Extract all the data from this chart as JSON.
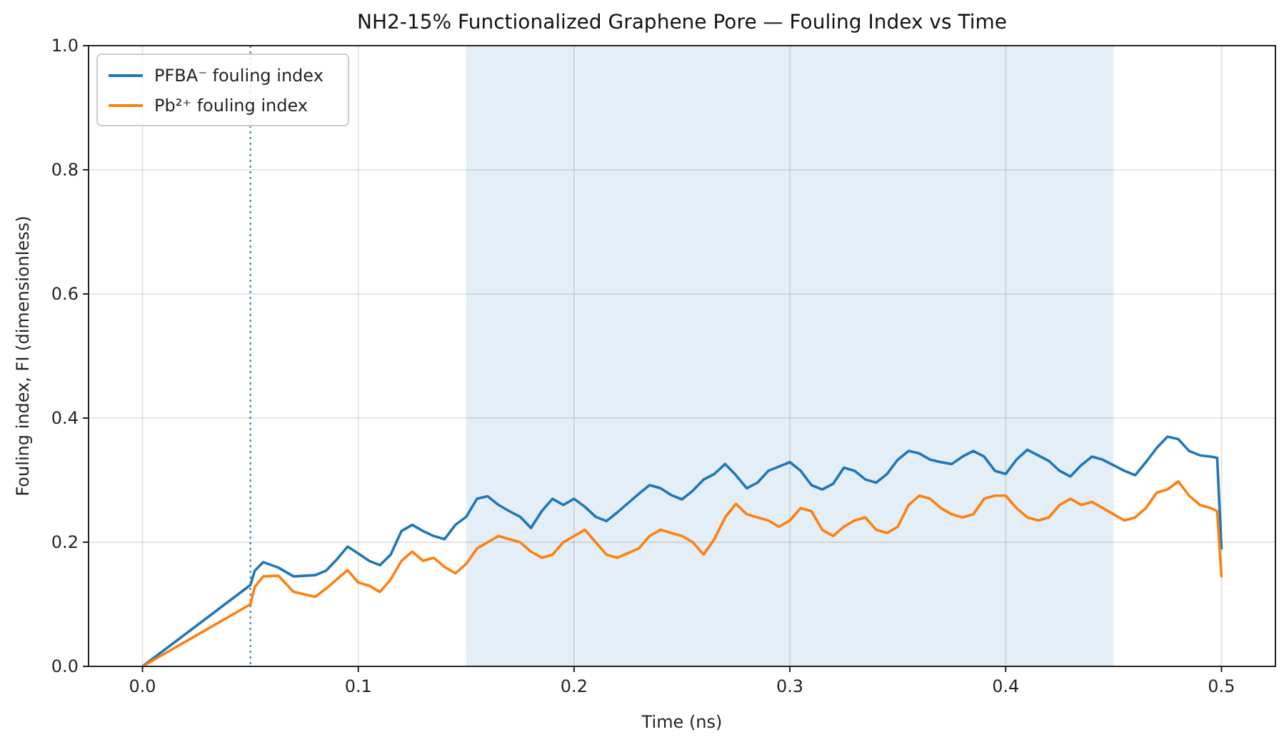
{
  "chart_data": {
    "type": "line",
    "title": "NH2-15% Functionalized Graphene Pore — Fouling Index vs Time",
    "xlabel": "Time (ns)",
    "ylabel": "Fouling index, FI (dimensionless)",
    "x": [
      0,
      0.05,
      0.052,
      0.056,
      0.063,
      0.07,
      0.08,
      0.085,
      0.09,
      0.095,
      0.1,
      0.105,
      0.11,
      0.115,
      0.12,
      0.125,
      0.13,
      0.135,
      0.14,
      0.145,
      0.15,
      0.155,
      0.16,
      0.165,
      0.17,
      0.175,
      0.18,
      0.185,
      0.19,
      0.195,
      0.2,
      0.205,
      0.21,
      0.215,
      0.22,
      0.23,
      0.235,
      0.24,
      0.245,
      0.25,
      0.255,
      0.26,
      0.265,
      0.27,
      0.275,
      0.28,
      0.285,
      0.29,
      0.295,
      0.3,
      0.305,
      0.31,
      0.315,
      0.32,
      0.325,
      0.33,
      0.335,
      0.34,
      0.345,
      0.35,
      0.355,
      0.36,
      0.365,
      0.37,
      0.375,
      0.38,
      0.385,
      0.39,
      0.395,
      0.4,
      0.405,
      0.41,
      0.415,
      0.42,
      0.425,
      0.43,
      0.435,
      0.44,
      0.445,
      0.45,
      0.455,
      0.46,
      0.465,
      0.47,
      0.475,
      0.48,
      0.485,
      0.49,
      0.495,
      0.498,
      0.5
    ],
    "series": [
      {
        "name": "PFBA⁻ fouling index",
        "color": "#1f77b4",
        "values": [
          0,
          0.131,
          0.154,
          0.168,
          0.159,
          0.145,
          0.147,
          0.154,
          0.172,
          0.193,
          0.182,
          0.17,
          0.163,
          0.18,
          0.218,
          0.228,
          0.218,
          0.21,
          0.205,
          0.228,
          0.241,
          0.27,
          0.274,
          0.26,
          0.25,
          0.241,
          0.223,
          0.25,
          0.27,
          0.26,
          0.27,
          0.257,
          0.241,
          0.234,
          0.248,
          0.278,
          0.292,
          0.287,
          0.276,
          0.269,
          0.283,
          0.301,
          0.31,
          0.326,
          0.308,
          0.287,
          0.296,
          0.315,
          0.322,
          0.329,
          0.315,
          0.292,
          0.285,
          0.294,
          0.32,
          0.315,
          0.301,
          0.296,
          0.31,
          0.333,
          0.347,
          0.343,
          0.333,
          0.329,
          0.326,
          0.338,
          0.347,
          0.338,
          0.315,
          0.31,
          0.333,
          0.349,
          0.34,
          0.331,
          0.315,
          0.306,
          0.324,
          0.338,
          0.333,
          0.324,
          0.315,
          0.308,
          0.329,
          0.352,
          0.37,
          0.366,
          0.347,
          0.34,
          0.338,
          0.336,
          0.19
        ]
      },
      {
        "name": "Pb²⁺ fouling index",
        "color": "#ff7f0e",
        "values": [
          0,
          0.1,
          0.128,
          0.145,
          0.146,
          0.12,
          0.112,
          0.125,
          0.14,
          0.155,
          0.135,
          0.13,
          0.12,
          0.14,
          0.17,
          0.185,
          0.17,
          0.175,
          0.16,
          0.15,
          0.165,
          0.19,
          0.2,
          0.21,
          0.205,
          0.2,
          0.185,
          0.175,
          0.18,
          0.2,
          0.21,
          0.22,
          0.2,
          0.18,
          0.175,
          0.19,
          0.21,
          0.22,
          0.215,
          0.21,
          0.2,
          0.18,
          0.205,
          0.24,
          0.262,
          0.245,
          0.24,
          0.235,
          0.225,
          0.235,
          0.255,
          0.25,
          0.22,
          0.21,
          0.225,
          0.235,
          0.24,
          0.22,
          0.215,
          0.225,
          0.26,
          0.275,
          0.27,
          0.255,
          0.245,
          0.24,
          0.245,
          0.27,
          0.275,
          0.275,
          0.255,
          0.24,
          0.235,
          0.24,
          0.26,
          0.27,
          0.26,
          0.265,
          0.255,
          0.245,
          0.235,
          0.24,
          0.255,
          0.28,
          0.285,
          0.298,
          0.275,
          0.26,
          0.255,
          0.25,
          0.145
        ]
      }
    ],
    "xlim": [
      -0.025,
      0.525
    ],
    "ylim": [
      0,
      1
    ],
    "xticks": [
      {
        "value": 0,
        "label": "0.0"
      },
      0.1,
      0.2,
      0.3,
      0.4,
      0.5
    ],
    "yticks": [
      {
        "value": 0,
        "label": "0.0"
      },
      0.2,
      0.4,
      0.6,
      0.8,
      {
        "value": 1,
        "label": "1.0"
      }
    ],
    "ref_lines": [
      {
        "axis": "x",
        "value": 0.05,
        "color": "#1f77b4",
        "line_style": "dotted"
      }
    ],
    "bands": [
      {
        "axis": "x",
        "from": 0.15,
        "to": 0.45,
        "color": "#1f77b4"
      }
    ],
    "grid": true,
    "legend": "top left",
    "line_style": "solid"
  }
}
